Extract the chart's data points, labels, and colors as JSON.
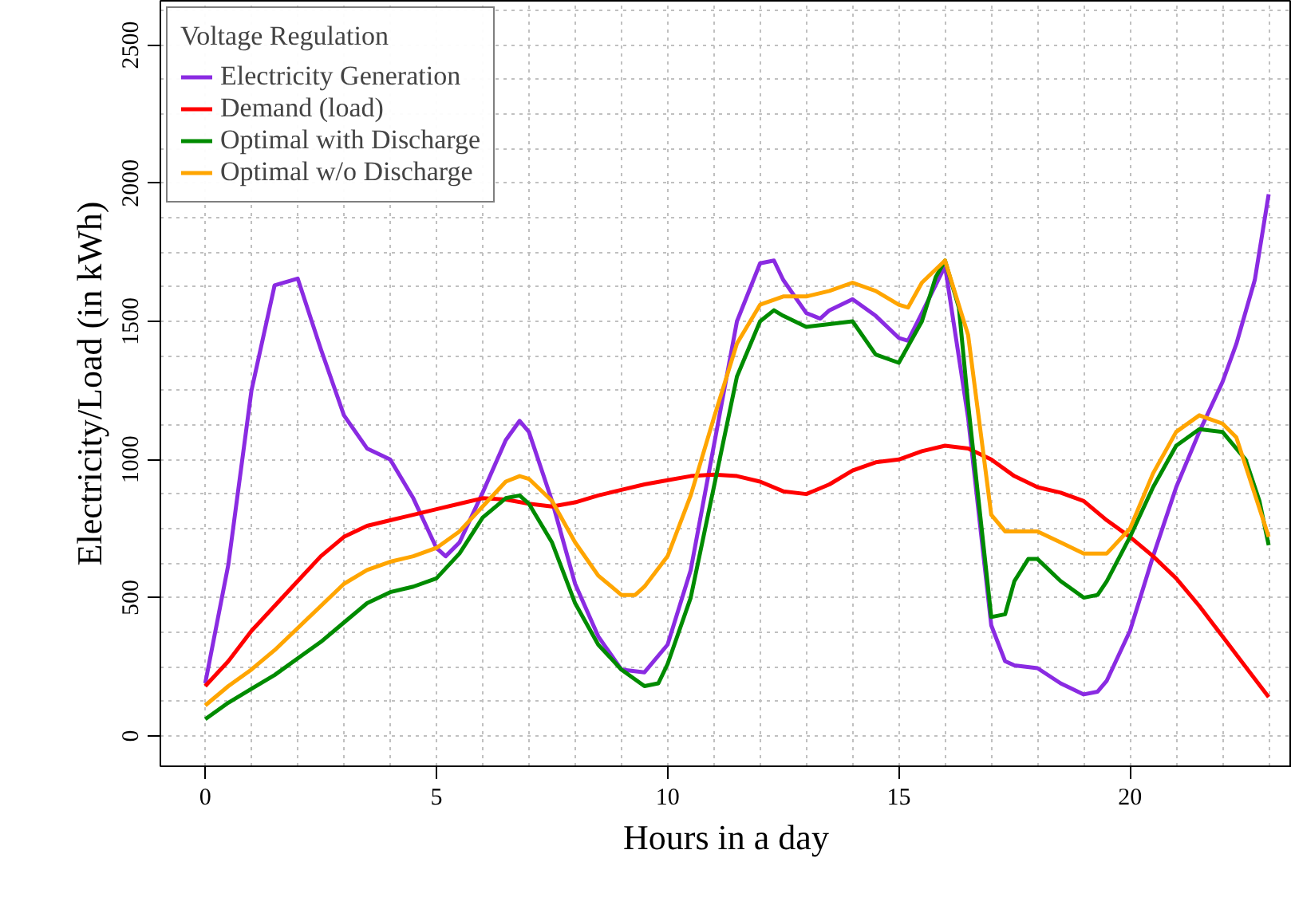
{
  "chart_data": {
    "type": "line",
    "xlabel": "Hours in a day",
    "ylabel": "Electricity/Load (in kWh)",
    "legend_title": "Voltage Regulation",
    "xlim": [
      -0.97,
      23.5
    ],
    "ylim": [
      -110,
      2660
    ],
    "xticks": [
      0,
      5,
      10,
      15,
      20
    ],
    "yticks": [
      0,
      500,
      1000,
      1500,
      2000,
      2500
    ],
    "grid": true,
    "legend": "top left",
    "line_style": "solid",
    "marker": "none",
    "series": [
      {
        "name": "Electricity Generation",
        "color": "#8a2be2",
        "x": [
          0,
          0.5,
          1,
          1.5,
          2,
          2.5,
          3,
          3.5,
          4,
          4.5,
          5,
          5.2,
          5.5,
          6,
          6.5,
          6.8,
          7,
          7.5,
          8,
          8.5,
          9,
          9.5,
          10,
          10.5,
          11,
          11.5,
          12,
          12.3,
          12.5,
          13,
          13.3,
          13.5,
          14,
          14.5,
          15,
          15.2,
          15.5,
          16,
          16.5,
          17,
          17.3,
          17.5,
          18,
          18.5,
          19,
          19.3,
          19.5,
          20,
          20.5,
          21,
          21.5,
          22,
          22.3,
          22.7,
          23
        ],
        "values": [
          190,
          620,
          1250,
          1630,
          1655,
          1400,
          1160,
          1040,
          1000,
          860,
          680,
          650,
          700,
          880,
          1070,
          1140,
          1100,
          850,
          550,
          360,
          240,
          230,
          330,
          600,
          1050,
          1500,
          1710,
          1720,
          1650,
          1530,
          1510,
          1540,
          1580,
          1520,
          1440,
          1430,
          1530,
          1700,
          1150,
          400,
          270,
          255,
          245,
          190,
          150,
          160,
          200,
          380,
          650,
          900,
          1100,
          1280,
          1418,
          1650,
          1960
        ]
      },
      {
        "name": "Demand (load)",
        "color": "#ff0000",
        "x": [
          0,
          0.5,
          1,
          1.5,
          2,
          2.5,
          3,
          3.5,
          4,
          4.5,
          5,
          5.5,
          6,
          6.5,
          7,
          7.5,
          8,
          8.5,
          9,
          9.5,
          10,
          10.5,
          11,
          11.5,
          12,
          12.5,
          13,
          13.5,
          14,
          14.5,
          15,
          15.5,
          16,
          16.5,
          17,
          17.5,
          18,
          18.5,
          19,
          19.5,
          20,
          20.5,
          21,
          21.5,
          22,
          22.5,
          23
        ],
        "values": [
          180,
          270,
          380,
          470,
          560,
          650,
          720,
          760,
          780,
          800,
          820,
          840,
          860,
          855,
          840,
          830,
          845,
          870,
          890,
          910,
          925,
          940,
          945,
          940,
          920,
          885,
          875,
          910,
          960,
          990,
          1000,
          1030,
          1050,
          1040,
          1000,
          940,
          900,
          880,
          850,
          780,
          720,
          650,
          570,
          470,
          360,
          250,
          140
        ]
      },
      {
        "name": "Optimal with Discharge",
        "color": "#008b00",
        "x": [
          0,
          0.5,
          1,
          1.5,
          2,
          2.5,
          3,
          3.5,
          4,
          4.5,
          5,
          5.5,
          6,
          6.5,
          6.8,
          7,
          7.5,
          8,
          8.5,
          9,
          9.5,
          9.8,
          10,
          10.5,
          11,
          11.5,
          12,
          12.3,
          12.5,
          13,
          13.5,
          14,
          14.5,
          15,
          15.5,
          15.8,
          16,
          16.3,
          16.5,
          17,
          17.3,
          17.5,
          17.8,
          18,
          18.5,
          19,
          19.3,
          19.5,
          20,
          20.5,
          21,
          21.5,
          22,
          22.5,
          22.8,
          23
        ],
        "values": [
          60,
          120,
          170,
          220,
          280,
          340,
          410,
          480,
          520,
          540,
          570,
          660,
          790,
          860,
          870,
          840,
          700,
          480,
          330,
          240,
          180,
          190,
          260,
          500,
          900,
          1300,
          1500,
          1540,
          1520,
          1480,
          1490,
          1500,
          1380,
          1350,
          1500,
          1660,
          1720,
          1550,
          1200,
          430,
          440,
          560,
          640,
          640,
          560,
          500,
          510,
          560,
          720,
          900,
          1050,
          1110,
          1100,
          1000,
          850,
          690
        ]
      },
      {
        "name": "Optimal w/o Discharge",
        "color": "#ffa500",
        "x": [
          0,
          0.5,
          1,
          1.5,
          2,
          2.5,
          3,
          3.5,
          4,
          4.5,
          5,
          5.5,
          6,
          6.5,
          6.8,
          7,
          7.5,
          8,
          8.5,
          9,
          9.3,
          9.5,
          10,
          10.5,
          11,
          11.5,
          12,
          12.5,
          13,
          13.5,
          14,
          14.5,
          15,
          15.2,
          15.5,
          16,
          16.5,
          17,
          17.3,
          18,
          18.5,
          19,
          19.5,
          20,
          20.5,
          21,
          21.5,
          22,
          22.3,
          23
        ],
        "values": [
          110,
          180,
          240,
          310,
          390,
          470,
          550,
          600,
          630,
          650,
          680,
          740,
          830,
          920,
          940,
          930,
          850,
          700,
          580,
          510,
          510,
          540,
          650,
          870,
          1150,
          1420,
          1560,
          1590,
          1590,
          1610,
          1640,
          1610,
          1560,
          1550,
          1640,
          1720,
          1450,
          800,
          740,
          740,
          700,
          660,
          660,
          750,
          950,
          1100,
          1160,
          1130,
          1080,
          720
        ]
      }
    ]
  }
}
